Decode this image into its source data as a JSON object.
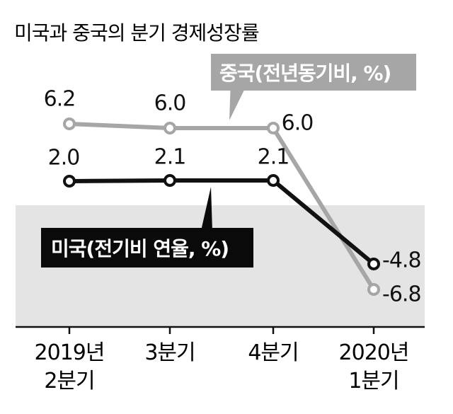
{
  "chart_data": {
    "type": "line",
    "title": "미국과 중국의 분기 경제성장률",
    "categories": [
      "2019년\n2분기",
      "3분기",
      "4분기",
      "2020년\n1분기"
    ],
    "series": [
      {
        "name": "중국(전년동기비, %)",
        "values": [
          6.2,
          6.0,
          6.0,
          -6.8
        ],
        "labels": [
          "6.2",
          "6.0",
          "6.0",
          "-6.8"
        ],
        "color": "#a6a6a6"
      },
      {
        "name": "미국(전기비 연율, %)",
        "values": [
          2.0,
          2.1,
          2.1,
          -4.8
        ],
        "labels": [
          "2.0",
          "2.1",
          "2.1",
          "-4.8"
        ],
        "color": "#111111"
      }
    ],
    "negative_region_color": "#e4e4e4",
    "legend_placement": [
      "top-right",
      "middle-left"
    ]
  }
}
